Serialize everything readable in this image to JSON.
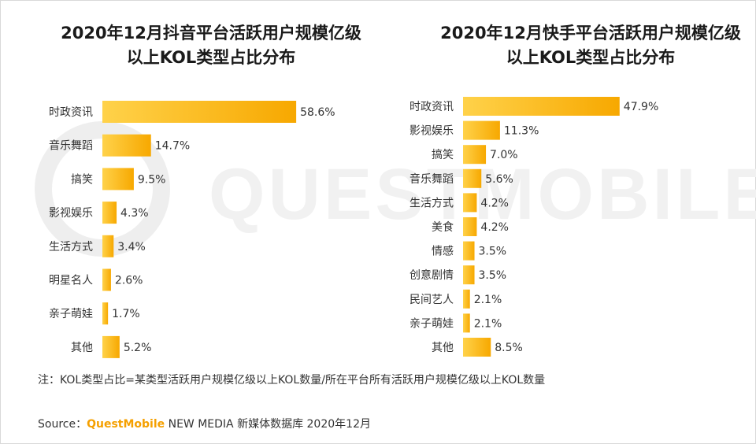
{
  "charts": [
    {
      "title_line1": "2020年12月抖音平台活跃用户规模亿级",
      "title_line2": "以上KOL类型占比分布"
    },
    {
      "title_line1": "2020年12月快手平台活跃用户规模亿级",
      "title_line2": "以上KOL类型占比分布"
    }
  ],
  "chart_data": [
    {
      "type": "bar",
      "orientation": "horizontal",
      "categories": [
        "时政资讯",
        "音乐舞蹈",
        "搞笑",
        "影视娱乐",
        "生活方式",
        "明星名人",
        "亲子萌娃",
        "其他"
      ],
      "values": [
        58.6,
        14.7,
        9.5,
        4.3,
        3.4,
        2.6,
        1.7,
        5.2
      ],
      "labels": [
        "58.6%",
        "14.7%",
        "9.5%",
        "4.3%",
        "3.4%",
        "2.6%",
        "1.7%",
        "5.2%"
      ],
      "unit": "%",
      "bar_color": "#ffc21a",
      "grid": false,
      "axes_visible": false
    },
    {
      "type": "bar",
      "orientation": "horizontal",
      "categories": [
        "时政资讯",
        "影视娱乐",
        "搞笑",
        "音乐舞蹈",
        "生活方式",
        "美食",
        "情感",
        "创意剧情",
        "民间艺人",
        "亲子萌娃",
        "其他"
      ],
      "values": [
        47.9,
        11.3,
        7.0,
        5.6,
        4.2,
        4.2,
        3.5,
        3.5,
        2.1,
        2.1,
        8.5
      ],
      "labels": [
        "47.9%",
        "11.3%",
        "7.0%",
        "5.6%",
        "4.2%",
        "4.2%",
        "3.5%",
        "3.5%",
        "2.1%",
        "2.1%",
        "8.5%"
      ],
      "unit": "%",
      "bar_color": "#ffc21a",
      "grid": false,
      "axes_visible": false
    }
  ],
  "note": "注：KOL类型占比=某类型活跃用户规模亿级以上KOL数量/所在平台所有活跃用户规模亿级以上KOL数量",
  "source": {
    "label": "Source：",
    "brand": "QuestMobile",
    "rest": " NEW MEDIA 新媒体数据库 2020年12月"
  },
  "watermark_text": "QUESTMOBILE",
  "colors": {
    "bar": "#ffc21a",
    "bar_dark": "#f7a800",
    "brand": "#f5a000"
  }
}
